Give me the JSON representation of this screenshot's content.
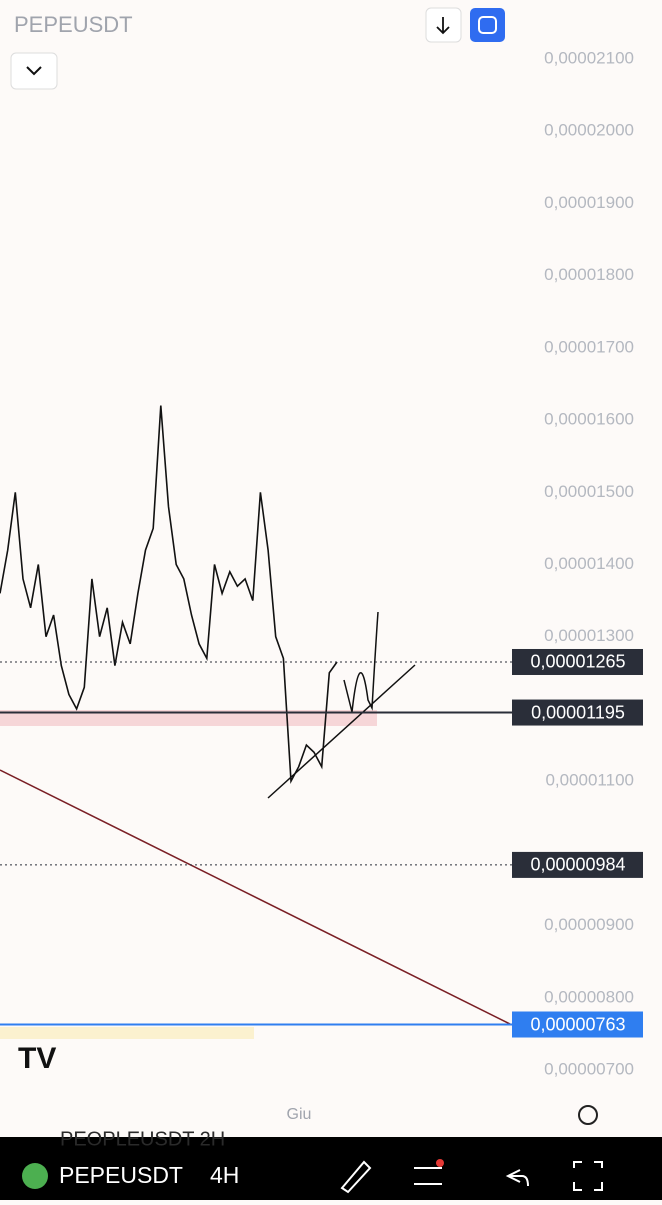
{
  "header": {
    "symbol": "PEPEUSDT"
  },
  "chart_data": {
    "type": "line",
    "color": "#111111",
    "values": [
      1.36e-05,
      1.42e-05,
      1.5e-05,
      1.38e-05,
      1.34e-05,
      1.4e-05,
      1.3e-05,
      1.33e-05,
      1.26e-05,
      1.22e-05,
      1.2e-05,
      1.23e-05,
      1.38e-05,
      1.3e-05,
      1.34e-05,
      1.26e-05,
      1.32e-05,
      1.29e-05,
      1.36e-05,
      1.42e-05,
      1.45e-05,
      1.62e-05,
      1.48e-05,
      1.4e-05,
      1.38e-05,
      1.33e-05,
      1.29e-05,
      1.27e-05,
      1.4e-05,
      1.36e-05,
      1.39e-05,
      1.37e-05,
      1.38e-05,
      1.35e-05,
      1.5e-05,
      1.42e-05,
      1.3e-05,
      1.27e-05,
      1.1e-05,
      1.12e-05,
      1.15e-05,
      1.14e-05,
      1.12e-05,
      1.25e-05,
      1.265e-05
    ],
    "ylim": [
      7e-06,
      2.1e-05
    ],
    "yticks": [
      {
        "value": 2.1e-05,
        "label": "0,00002100"
      },
      {
        "value": 2e-05,
        "label": "0,00002000"
      },
      {
        "value": 1.9e-05,
        "label": "0,00001900"
      },
      {
        "value": 1.8e-05,
        "label": "0,00001800"
      },
      {
        "value": 1.7e-05,
        "label": "0,00001700"
      },
      {
        "value": 1.6e-05,
        "label": "0,00001600"
      },
      {
        "value": 1.5e-05,
        "label": "0,00001500"
      },
      {
        "value": 1.4e-05,
        "label": "0,00001400"
      },
      {
        "value": 1.3e-05,
        "label": "0,00001300"
      },
      {
        "value": 1.1e-05,
        "label": "0,00001100"
      },
      {
        "value": 9e-06,
        "label": "0,00000900"
      },
      {
        "value": 8e-06,
        "label": "0,00000800"
      },
      {
        "value": 7e-06,
        "label": "0,00000700"
      }
    ],
    "price_lines": [
      {
        "value": 1.265e-05,
        "label": "0,00001265",
        "color": "#2a2e39",
        "style": "dotted"
      },
      {
        "value": 1.195e-05,
        "label": "0,00001195",
        "color": "#2a2e39",
        "style": "solid"
      },
      {
        "value": 9.84e-06,
        "label": "0,00000984",
        "color": "#2a2e39",
        "style": "dotted"
      },
      {
        "value": 7.63e-06,
        "label": "0,00000763",
        "color": "#2f7ef0",
        "style": "solid"
      }
    ]
  },
  "watermark": "Giu",
  "toolbar": {
    "ghost": "PEOPLEUSDT   2H",
    "symbol": "PEPEUSDT",
    "interval": "4H"
  }
}
